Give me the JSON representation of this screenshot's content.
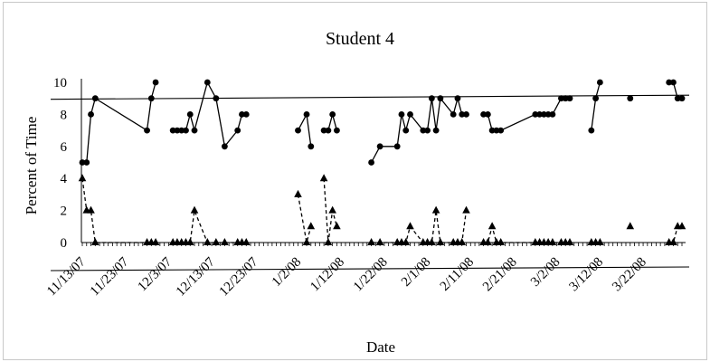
{
  "chart_data": {
    "type": "scatter",
    "title": "Student 4",
    "xlabel": "Date",
    "ylabel": "Percent of Time",
    "ylim": [
      0,
      10
    ],
    "yticks": [
      "0",
      "2",
      "4",
      "6",
      "8",
      "10"
    ],
    "xlim": [
      "2007-11-13",
      "2008-03-31"
    ],
    "xticks": [
      "11/13/07",
      "11/23/07",
      "12/3/07",
      "12/13/07",
      "12/23/07",
      "1/2/08",
      "1/12/08",
      "1/22/08",
      "2/1/08",
      "2/11/08",
      "2/21/08",
      "3/2/08",
      "3/12/08",
      "3/22/08"
    ],
    "grid": false,
    "legend": "none",
    "reference_line": {
      "from": [
        "2007-11-13",
        9
      ],
      "to": [
        "2008-03-31",
        9.2
      ]
    },
    "series": [
      {
        "marker": "circle",
        "line": "solid",
        "segments": [
          [
            [
              "2007-11-13",
              5
            ],
            [
              "2007-11-14",
              5
            ],
            [
              "2007-11-15",
              8
            ],
            [
              "2007-11-16",
              9
            ],
            [
              "2007-11-28",
              7
            ],
            [
              "2007-11-29",
              9
            ],
            [
              "2007-11-30",
              10
            ]
          ],
          [
            [
              "2007-12-04",
              7
            ],
            [
              "2007-12-05",
              7
            ],
            [
              "2007-12-06",
              7
            ],
            [
              "2007-12-07",
              7
            ],
            [
              "2007-12-08",
              8
            ],
            [
              "2007-12-09",
              7
            ],
            [
              "2007-12-12",
              10
            ],
            [
              "2007-12-14",
              9
            ],
            [
              "2007-12-16",
              6
            ],
            [
              "2007-12-19",
              7
            ],
            [
              "2007-12-20",
              8
            ],
            [
              "2007-12-21",
              8
            ]
          ],
          [
            [
              "2008-01-02",
              7
            ],
            [
              "2008-01-04",
              8
            ],
            [
              "2008-01-05",
              6
            ]
          ],
          [
            [
              "2008-01-08",
              7
            ],
            [
              "2008-01-09",
              7
            ],
            [
              "2008-01-10",
              8
            ],
            [
              "2008-01-11",
              7
            ]
          ],
          [
            [
              "2008-01-19",
              5
            ],
            [
              "2008-01-21",
              6
            ],
            [
              "2008-01-25",
              6
            ],
            [
              "2008-01-26",
              8
            ],
            [
              "2008-01-27",
              7
            ],
            [
              "2008-01-28",
              8
            ],
            [
              "2008-01-31",
              7
            ],
            [
              "2008-02-01",
              7
            ],
            [
              "2008-02-02",
              9
            ],
            [
              "2008-02-03",
              7
            ],
            [
              "2008-02-04",
              9
            ],
            [
              "2008-02-07",
              8
            ],
            [
              "2008-02-08",
              9
            ],
            [
              "2008-02-09",
              8
            ],
            [
              "2008-02-10",
              8
            ]
          ],
          [
            [
              "2008-02-14",
              8
            ],
            [
              "2008-02-15",
              8
            ],
            [
              "2008-02-16",
              7
            ],
            [
              "2008-02-17",
              7
            ],
            [
              "2008-02-18",
              7
            ],
            [
              "2008-02-26",
              8
            ],
            [
              "2008-02-27",
              8
            ],
            [
              "2008-02-28",
              8
            ],
            [
              "2008-02-29",
              8
            ],
            [
              "2008-03-01",
              8
            ],
            [
              "2008-03-03",
              9
            ],
            [
              "2008-03-04",
              9
            ],
            [
              "2008-03-05",
              9
            ]
          ],
          [
            [
              "2008-03-10",
              7
            ],
            [
              "2008-03-11",
              9
            ],
            [
              "2008-03-12",
              10
            ]
          ],
          [
            [
              "2008-03-19",
              9
            ]
          ],
          [
            [
              "2008-03-28",
              10
            ],
            [
              "2008-03-29",
              10
            ],
            [
              "2008-03-30",
              9
            ],
            [
              "2008-03-31",
              9
            ]
          ]
        ]
      },
      {
        "marker": "triangle",
        "line": "dashed",
        "segments": [
          [
            [
              "2007-11-13",
              4
            ],
            [
              "2007-11-14",
              2
            ],
            [
              "2007-11-15",
              2
            ],
            [
              "2007-11-16",
              0
            ],
            [
              "2007-11-28",
              0
            ],
            [
              "2007-11-29",
              0
            ],
            [
              "2007-11-30",
              0
            ]
          ],
          [
            [
              "2007-12-04",
              0
            ],
            [
              "2007-12-05",
              0
            ],
            [
              "2007-12-06",
              0
            ],
            [
              "2007-12-07",
              0
            ],
            [
              "2007-12-08",
              0
            ],
            [
              "2007-12-09",
              2
            ],
            [
              "2007-12-12",
              0
            ],
            [
              "2007-12-14",
              0
            ],
            [
              "2007-12-16",
              0
            ],
            [
              "2007-12-19",
              0
            ],
            [
              "2007-12-20",
              0
            ],
            [
              "2007-12-21",
              0
            ]
          ],
          [
            [
              "2008-01-02",
              3
            ],
            [
              "2008-01-04",
              0
            ],
            [
              "2008-01-05",
              1
            ]
          ],
          [
            [
              "2008-01-08",
              4
            ],
            [
              "2008-01-09",
              0
            ],
            [
              "2008-01-10",
              2
            ],
            [
              "2008-01-11",
              1
            ]
          ],
          [
            [
              "2008-01-19",
              0
            ],
            [
              "2008-01-21",
              0
            ],
            [
              "2008-01-25",
              0
            ],
            [
              "2008-01-26",
              0
            ],
            [
              "2008-01-27",
              0
            ],
            [
              "2008-01-28",
              1
            ],
            [
              "2008-01-31",
              0
            ],
            [
              "2008-02-01",
              0
            ],
            [
              "2008-02-02",
              0
            ],
            [
              "2008-02-03",
              2
            ],
            [
              "2008-02-04",
              0
            ],
            [
              "2008-02-07",
              0
            ],
            [
              "2008-02-08",
              0
            ],
            [
              "2008-02-09",
              0
            ],
            [
              "2008-02-10",
              2
            ]
          ],
          [
            [
              "2008-02-14",
              0
            ],
            [
              "2008-02-15",
              0
            ],
            [
              "2008-02-16",
              1
            ],
            [
              "2008-02-17",
              0
            ],
            [
              "2008-02-18",
              0
            ],
            [
              "2008-02-26",
              0
            ],
            [
              "2008-02-27",
              0
            ],
            [
              "2008-02-28",
              0
            ],
            [
              "2008-02-29",
              0
            ],
            [
              "2008-03-01",
              0
            ],
            [
              "2008-03-03",
              0
            ],
            [
              "2008-03-04",
              0
            ],
            [
              "2008-03-05",
              0
            ]
          ],
          [
            [
              "2008-03-10",
              0
            ],
            [
              "2008-03-11",
              0
            ],
            [
              "2008-03-12",
              0
            ]
          ],
          [
            [
              "2008-03-19",
              1
            ]
          ],
          [
            [
              "2008-03-28",
              0
            ],
            [
              "2008-03-29",
              0
            ],
            [
              "2008-03-30",
              1
            ],
            [
              "2008-03-31",
              1
            ]
          ]
        ]
      }
    ]
  }
}
